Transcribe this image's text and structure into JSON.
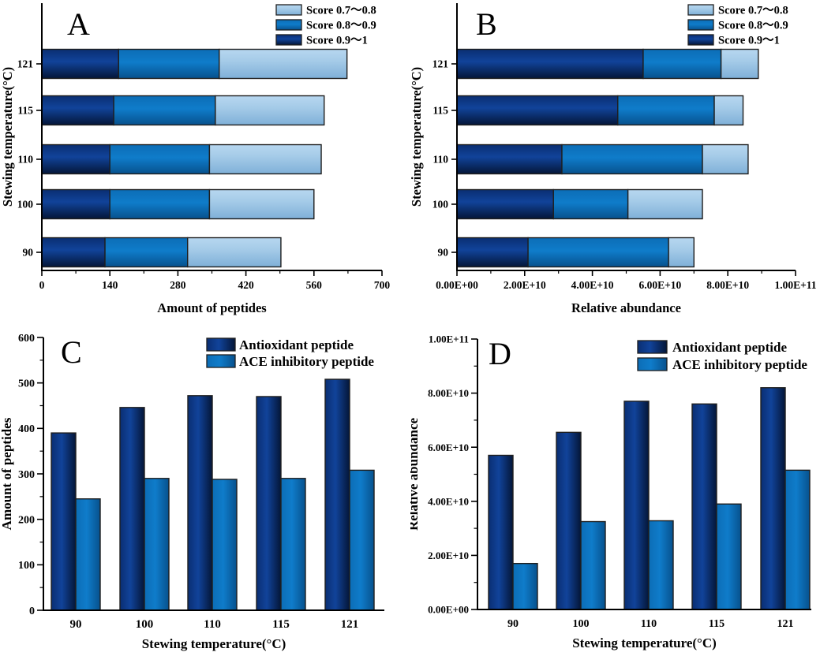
{
  "figure": {
    "background": "#ffffff"
  },
  "palette": {
    "dark": {
      "stops": [
        "#0a2e72",
        "#11439a",
        "#041638"
      ],
      "offsets": [
        0,
        42,
        100
      ]
    },
    "medium": {
      "stops": [
        "#0c6db6",
        "#0f7cca",
        "#07518d"
      ],
      "offsets": [
        0,
        45,
        100
      ]
    },
    "light": {
      "stops": [
        "#b7d7f0",
        "#a5cbe8",
        "#7fb0d8"
      ],
      "offsets": [
        0,
        40,
        100
      ]
    },
    "bar_border": "#1f1f1f",
    "axis": "#000000",
    "text": "#000000"
  },
  "chart_data": [
    {
      "id": "A",
      "panel_label": "A",
      "type": "stacked_bar_horizontal",
      "title": "",
      "xlabel": "Amount of peptides",
      "ylabel": "Stewing temperature(°C)",
      "categories": [
        "90",
        "100",
        "110",
        "115",
        "121"
      ],
      "series": [
        {
          "name": "Score 0.9～1",
          "color": "dark",
          "values": [
            130,
            140,
            140,
            148,
            158
          ]
        },
        {
          "name": "Score 0.8～0.9",
          "color": "medium",
          "values": [
            170,
            205,
            205,
            209,
            207
          ]
        },
        {
          "name": "Score 0.7～0.8",
          "color": "light",
          "values": [
            192,
            215,
            230,
            224,
            263
          ]
        }
      ],
      "xlim": [
        0,
        700
      ],
      "xticks": [
        0,
        140,
        280,
        420,
        560,
        700
      ],
      "xtick_labels": [
        "0",
        "140",
        "280",
        "420",
        "560",
        "700"
      ],
      "grid": false,
      "legend_position": "top-right",
      "legend": [
        {
          "label": "Score 0.7～0.8",
          "color": "light"
        },
        {
          "label": "Score 0.8～0.9",
          "color": "medium"
        },
        {
          "label": "Score 0.9～1",
          "color": "dark"
        }
      ]
    },
    {
      "id": "B",
      "panel_label": "B",
      "type": "stacked_bar_horizontal",
      "title": "",
      "xlabel": "Relative abundance",
      "ylabel": "Stewing temperature(°C)",
      "categories": [
        "90",
        "100",
        "110",
        "115",
        "121"
      ],
      "series": [
        {
          "name": "Score 0.9～1",
          "color": "dark",
          "values": [
            21000000000.0,
            28500000000.0,
            31000000000.0,
            47500000000.0,
            55000000000.0
          ]
        },
        {
          "name": "Score 0.8～0.9",
          "color": "medium",
          "values": [
            41500000000.0,
            22000000000.0,
            41500000000.0,
            28500000000.0,
            23000000000.0
          ]
        },
        {
          "name": "Score 0.7～0.8",
          "color": "light",
          "values": [
            7500000000.0,
            22000000000.0,
            13500000000.0,
            8500000000.0,
            11000000000.0
          ]
        }
      ],
      "xlim": [
        0,
        100000000000.0
      ],
      "xticks": [
        0,
        20000000000.0,
        40000000000.0,
        60000000000.0,
        80000000000.0,
        100000000000.0
      ],
      "xtick_labels": [
        "0.00E+00",
        "2.00E+10",
        "4.00E+10",
        "6.00E+10",
        "8.00E+10",
        "1.00E+11"
      ],
      "grid": false,
      "legend_position": "top-right",
      "legend": [
        {
          "label": "Score 0.7～0.8",
          "color": "light"
        },
        {
          "label": "Score 0.8～0.9",
          "color": "medium"
        },
        {
          "label": "Score 0.9～1",
          "color": "dark"
        }
      ]
    },
    {
      "id": "C",
      "panel_label": "C",
      "type": "grouped_bar_vertical",
      "title": "",
      "xlabel": "Stewing temperature(°C)",
      "ylabel": "Amount of peptides",
      "categories": [
        "90",
        "100",
        "110",
        "115",
        "121"
      ],
      "series": [
        {
          "name": "Antioxidant peptide",
          "color": "dark",
          "values": [
            390,
            446,
            472,
            470,
            508
          ]
        },
        {
          "name": "ACE inhibitory peptide",
          "color": "medium",
          "values": [
            245,
            290,
            288,
            290,
            308
          ]
        }
      ],
      "ylim": [
        0,
        600
      ],
      "yticks": [
        0,
        100,
        200,
        300,
        400,
        500,
        600
      ],
      "ytick_labels": [
        "0",
        "100",
        "200",
        "300",
        "400",
        "500",
        "600"
      ],
      "grid": false,
      "legend_position": "top-right",
      "legend": [
        {
          "label": "Antioxidant peptide",
          "color": "dark"
        },
        {
          "label": "ACE inhibitory peptide",
          "color": "medium"
        }
      ]
    },
    {
      "id": "D",
      "panel_label": "D",
      "type": "grouped_bar_vertical",
      "title": "",
      "xlabel": "Stewing temperature(°C)",
      "ylabel": "Relative abundance",
      "categories": [
        "90",
        "100",
        "110",
        "115",
        "121"
      ],
      "series": [
        {
          "name": "Antioxidant peptide",
          "color": "dark",
          "values": [
            57000000000.0,
            65500000000.0,
            77000000000.0,
            76000000000.0,
            82000000000.0
          ]
        },
        {
          "name": "ACE inhibitory peptide",
          "color": "medium",
          "values": [
            17000000000.0,
            32500000000.0,
            32800000000.0,
            39000000000.0,
            51500000000.0
          ]
        }
      ],
      "ylim": [
        0,
        100000000000.0
      ],
      "yticks": [
        0,
        20000000000.0,
        40000000000.0,
        60000000000.0,
        80000000000.0,
        100000000000.0
      ],
      "ytick_labels": [
        "0.00E+00",
        "2.00E+10",
        "4.00E+10",
        "6.00E+10",
        "8.00E+10",
        "1.00E+11"
      ],
      "grid": false,
      "legend_position": "top-right",
      "legend": [
        {
          "label": "Antioxidant peptide",
          "color": "dark"
        },
        {
          "label": "ACE inhibitory peptide",
          "color": "medium"
        }
      ]
    }
  ]
}
